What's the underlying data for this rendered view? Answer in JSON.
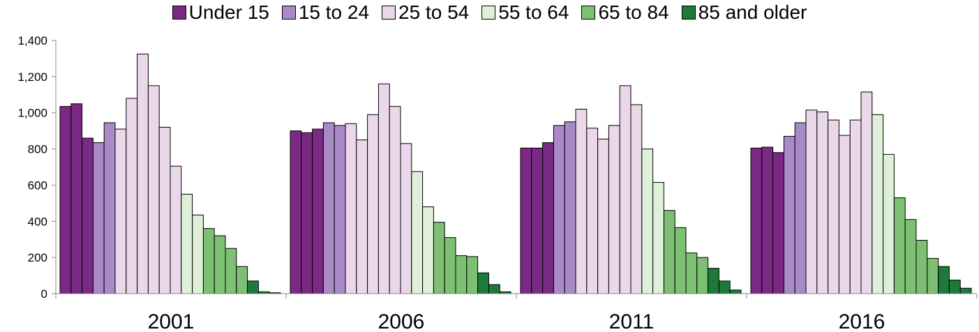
{
  "chart_data": {
    "type": "bar",
    "title": "",
    "xlabel": "",
    "ylabel": "",
    "ylim": [
      0,
      1400
    ],
    "yticks": [
      0,
      200,
      400,
      600,
      800,
      1000,
      1200,
      1400
    ],
    "ytick_labels": [
      "0",
      "200",
      "400",
      "600",
      "800",
      "1,000",
      "1,200",
      "1,400"
    ],
    "grid": false,
    "legend_position": "top",
    "groups": [
      "2001",
      "2006",
      "2011",
      "2016"
    ],
    "age_groups": [
      {
        "name": "Under 15",
        "color": "#7a2a85"
      },
      {
        "name": "15 to 24",
        "color": "#a98ac6"
      },
      {
        "name": "25 to 54",
        "color": "#ead7ea"
      },
      {
        "name": "55 to 64",
        "color": "#dff0d8"
      },
      {
        "name": "65 to 84",
        "color": "#7dbf73"
      },
      {
        "name": "85 and older",
        "color": "#1d7a3a"
      }
    ],
    "bar_age_group_index": [
      0,
      0,
      0,
      1,
      1,
      2,
      2,
      2,
      2,
      2,
      2,
      3,
      3,
      4,
      4,
      4,
      4,
      5,
      5,
      5
    ],
    "values": [
      [
        1035,
        1050,
        860,
        835,
        945,
        910,
        1080,
        1325,
        1150,
        920,
        705,
        550,
        435,
        360,
        320,
        250,
        150,
        70,
        10,
        5
      ],
      [
        900,
        890,
        910,
        945,
        930,
        940,
        850,
        990,
        1160,
        1035,
        830,
        675,
        480,
        395,
        310,
        210,
        205,
        115,
        50,
        10
      ],
      [
        805,
        805,
        835,
        930,
        950,
        1020,
        915,
        855,
        930,
        1150,
        1045,
        800,
        615,
        460,
        365,
        225,
        200,
        140,
        70,
        20
      ],
      [
        805,
        810,
        780,
        870,
        945,
        1015,
        1005,
        960,
        875,
        960,
        1115,
        990,
        770,
        530,
        410,
        295,
        195,
        150,
        75,
        30
      ]
    ]
  }
}
